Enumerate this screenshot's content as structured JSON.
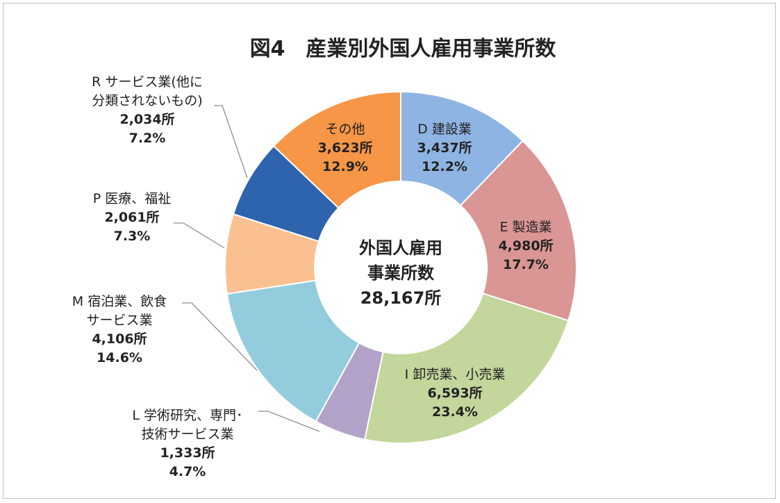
{
  "chart_data": {
    "type": "pie",
    "donut": true,
    "title": "図4　産業別外国人雇用事業所数",
    "center_label": [
      "外国人雇用",
      "事業所数",
      "28,167所"
    ],
    "start": "12 o'clock, clockwise",
    "slices": [
      {
        "name": [
          "D 建設業"
        ],
        "value": 3437,
        "value_label": "3,437所",
        "percent": "12.2%",
        "color": "#8EB4E3"
      },
      {
        "name": [
          "E 製造業"
        ],
        "value": 4980,
        "value_label": "4,980所",
        "percent": "17.7%",
        "color": "#DA9694"
      },
      {
        "name": [
          "I 卸売業、小売業"
        ],
        "value": 6593,
        "value_label": "6,593所",
        "percent": "23.4%",
        "color": "#C3D69B"
      },
      {
        "name": [
          "L 学術研究、専門･",
          "技術サービス業"
        ],
        "value": 1333,
        "value_label": "1,333所",
        "percent": "4.7%",
        "color": "#B3A2C7"
      },
      {
        "name": [
          "M 宿泊業、飲食",
          "サービス業"
        ],
        "value": 4106,
        "value_label": "4,106所",
        "percent": "14.6%",
        "color": "#93CDDD"
      },
      {
        "name": [
          "P 医療、福祉"
        ],
        "value": 2061,
        "value_label": "2,061所",
        "percent": "7.3%",
        "color": "#FAC090"
      },
      {
        "name": [
          "R サービス業(他に",
          "分類されないもの)"
        ],
        "value": 2034,
        "value_label": "2,034所",
        "percent": "7.2%",
        "color": "#2E63AE"
      },
      {
        "name": [
          "その他"
        ],
        "value": 3623,
        "value_label": "3,623所",
        "percent": "12.9%",
        "color": "#F79646"
      }
    ]
  }
}
